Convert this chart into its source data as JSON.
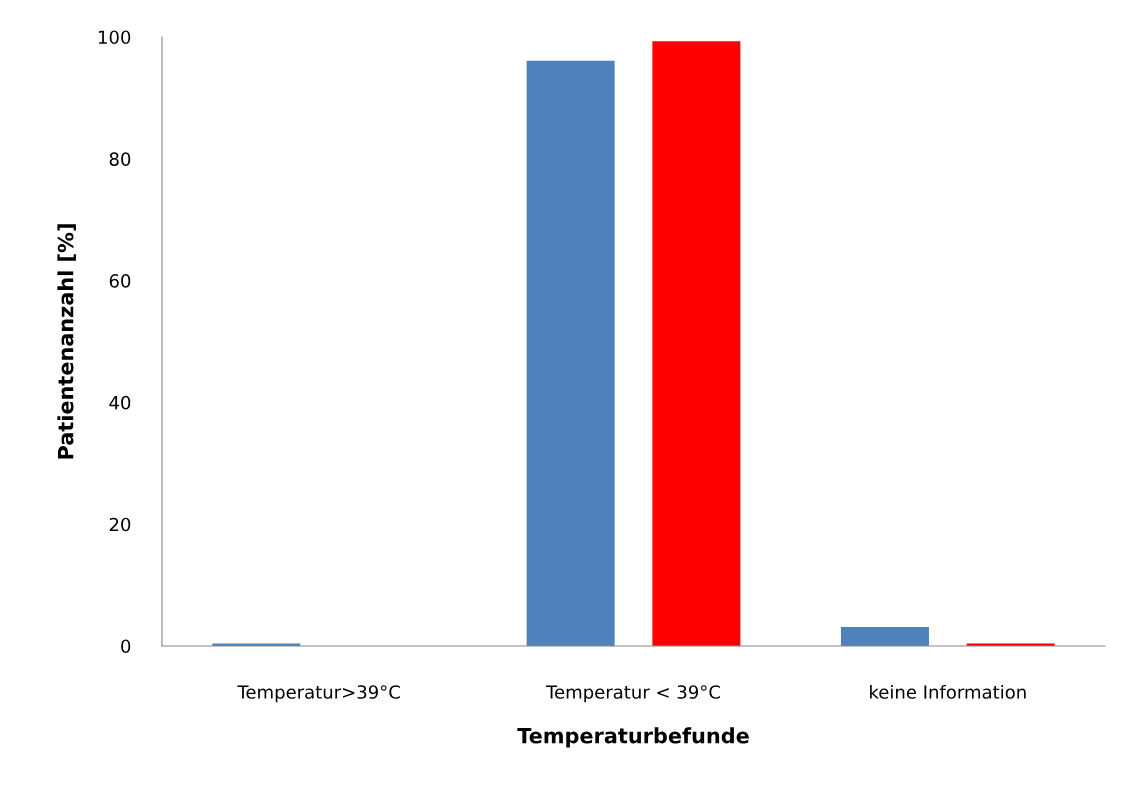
{
  "chart_data": {
    "type": "bar",
    "xlabel": "Temperaturbefunde",
    "ylabel": "Patientenanzahl [%]",
    "categories": [
      "Temperatur>39°C",
      "Temperatur < 39°C",
      "keine Information"
    ],
    "series": [
      {
        "color": "#4f81bd",
        "values": [
          0.4,
          96.1,
          3.1
        ]
      },
      {
        "color": "#ff0000",
        "values": [
          0,
          99.3,
          0.4
        ]
      }
    ],
    "ylim": [
      0,
      100
    ],
    "yticks": [
      0,
      20,
      40,
      60,
      80,
      100
    ],
    "grid": false
  }
}
